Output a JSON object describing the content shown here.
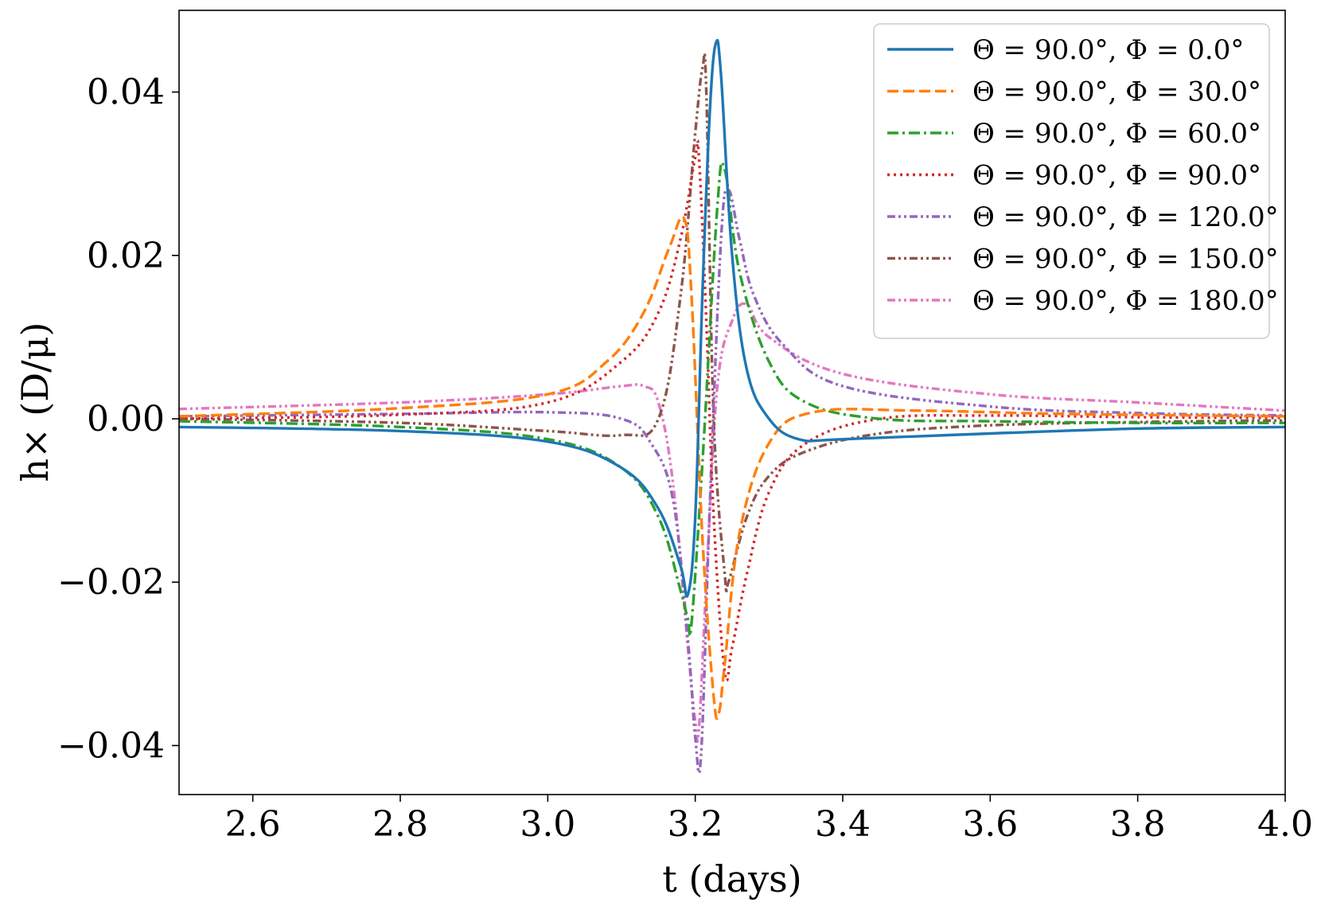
{
  "chart_data": {
    "type": "line",
    "title": "",
    "xlabel": "t (days)",
    "ylabel": "h× (D/μ)",
    "xlim": [
      2.5,
      4.0
    ],
    "ylim": [
      -0.046,
      0.05
    ],
    "xticks": [
      2.6,
      2.8,
      3.0,
      3.2,
      3.4,
      3.6,
      3.8,
      4.0
    ],
    "xtick_labels": [
      "2.6",
      "2.8",
      "3.0",
      "3.2",
      "3.4",
      "3.6",
      "3.8",
      "4.0"
    ],
    "yticks": [
      0.04,
      0.02,
      0.0,
      -0.02,
      -0.04
    ],
    "ytick_labels": [
      "0.04",
      "0.02",
      "0.00",
      "−0.02",
      "−0.04"
    ],
    "grid": false,
    "legend_position": "top-right",
    "series": [
      {
        "name": "Θ = 90.0°,  Φ = 0.0°",
        "color": "#1f77b4",
        "dash": "solid",
        "x": [
          2.5,
          2.8,
          3.0,
          3.1,
          3.15,
          3.18,
          3.19,
          3.2,
          3.21,
          3.22,
          3.228,
          3.235,
          3.25,
          3.27,
          3.3,
          3.34,
          3.4,
          3.6,
          3.8,
          4.0
        ],
        "y": [
          -0.001,
          -0.0015,
          -0.0028,
          -0.006,
          -0.011,
          -0.018,
          -0.0215,
          -0.012,
          0.016,
          0.038,
          0.046,
          0.042,
          0.02,
          0.006,
          0.0,
          -0.0025,
          -0.0025,
          -0.0018,
          -0.0012,
          -0.001
        ]
      },
      {
        "name": "Θ = 90.0°,  Φ = 30.0°",
        "color": "#ff7f0e",
        "dash": "dashed",
        "x": [
          2.5,
          2.8,
          3.0,
          3.08,
          3.13,
          3.165,
          3.185,
          3.195,
          3.21,
          3.225,
          3.232,
          3.24,
          3.26,
          3.3,
          3.36,
          3.5,
          3.7,
          4.0
        ],
        "y": [
          0.0003,
          0.0013,
          0.003,
          0.007,
          0.013,
          0.021,
          0.0245,
          0.015,
          -0.015,
          -0.034,
          -0.036,
          -0.03,
          -0.014,
          -0.003,
          0.0008,
          0.001,
          0.0006,
          0.0003
        ]
      },
      {
        "name": "Θ = 90.0°,  Φ = 60.0°",
        "color": "#2ca02c",
        "dash": "dashdot",
        "x": [
          2.5,
          2.8,
          3.0,
          3.1,
          3.15,
          3.18,
          3.19,
          3.195,
          3.21,
          3.23,
          3.24,
          3.26,
          3.3,
          3.35,
          3.45,
          3.6,
          3.8,
          4.0
        ],
        "y": [
          -0.0003,
          -0.001,
          -0.0025,
          -0.006,
          -0.012,
          -0.021,
          -0.0245,
          -0.025,
          -0.005,
          0.026,
          0.0305,
          0.018,
          0.007,
          0.002,
          0.0,
          -0.0003,
          -0.0005,
          -0.0005
        ]
      },
      {
        "name": "Θ = 90.0°,  Φ = 90.0°",
        "color": "#d62728",
        "dash": "dotted",
        "x": [
          2.5,
          2.8,
          3.0,
          3.1,
          3.15,
          3.18,
          3.2,
          3.205,
          3.215,
          3.225,
          3.24,
          3.25,
          3.27,
          3.3,
          3.35,
          3.45,
          3.6,
          3.8,
          4.0
        ],
        "y": [
          0.0,
          0.0005,
          0.002,
          0.007,
          0.013,
          0.022,
          0.032,
          0.032,
          0.012,
          -0.012,
          -0.031,
          -0.028,
          -0.019,
          -0.009,
          -0.003,
          0.0,
          0.0004,
          0.0002,
          0.0001
        ]
      },
      {
        "name": "Θ = 90.0°,  Φ = 120.0°",
        "color": "#9467bd",
        "dash": "dashdotdot",
        "x": [
          2.5,
          2.8,
          3.0,
          3.1,
          3.14,
          3.17,
          3.19,
          3.2,
          3.208,
          3.22,
          3.235,
          3.245,
          3.26,
          3.28,
          3.32,
          3.4,
          3.6,
          3.8,
          4.0
        ],
        "y": [
          0.0003,
          0.0006,
          0.0008,
          0.0,
          -0.003,
          -0.01,
          -0.027,
          -0.039,
          -0.041,
          -0.01,
          0.022,
          0.028,
          0.022,
          0.015,
          0.009,
          0.004,
          0.0015,
          0.0007,
          0.0004
        ]
      },
      {
        "name": "Θ = 90.0°,  Φ = 150.0°",
        "color": "#8c564b",
        "dash": "dashdotdot",
        "x": [
          2.5,
          2.8,
          3.0,
          3.1,
          3.15,
          3.18,
          3.2,
          3.21,
          3.215,
          3.225,
          3.24,
          3.245,
          3.27,
          3.3,
          3.35,
          3.45,
          3.6,
          3.8,
          4.0
        ],
        "y": [
          0.0,
          -0.0005,
          -0.0015,
          -0.002,
          0.0,
          0.015,
          0.035,
          0.043,
          0.04,
          0.0,
          -0.019,
          -0.02,
          -0.012,
          -0.007,
          -0.004,
          -0.0018,
          -0.0008,
          -0.0004,
          -0.0002
        ]
      },
      {
        "name": "Θ = 90.0°,  Φ = 180.0°",
        "color": "#e377c2",
        "dash": "dashdotdot",
        "x": [
          2.5,
          2.8,
          3.0,
          3.1,
          3.13,
          3.15,
          3.17,
          3.19,
          3.2,
          3.205,
          3.215,
          3.23,
          3.25,
          3.27,
          3.3,
          3.4,
          3.6,
          3.8,
          4.0
        ],
        "y": [
          0.0012,
          0.002,
          0.003,
          0.004,
          0.004,
          0.002,
          -0.008,
          -0.028,
          -0.037,
          -0.038,
          -0.02,
          0.004,
          0.012,
          0.014,
          0.01,
          0.0055,
          0.003,
          0.002,
          0.001
        ]
      }
    ]
  }
}
